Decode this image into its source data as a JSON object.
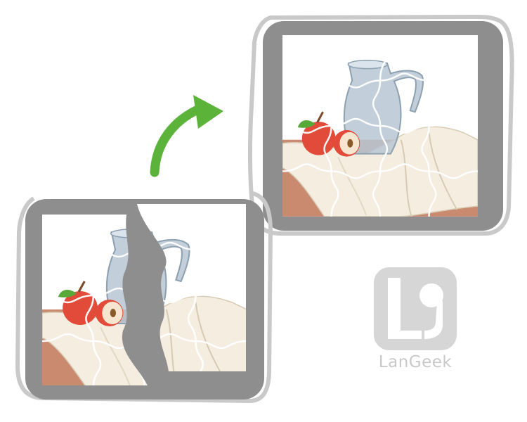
{
  "image": {
    "description_name": "puzzle-before-after-illustration"
  },
  "colors": {
    "frame": "#8e8e8e",
    "arrow": "#5bb33a",
    "apple": "#e24b3a",
    "leaf": "#58a83a",
    "cloth": "#f4ede0",
    "table": "#c98a70",
    "jug": "#b7c6d2",
    "logo": "#d6d6d6"
  },
  "logo": {
    "text": "LanGeek"
  }
}
